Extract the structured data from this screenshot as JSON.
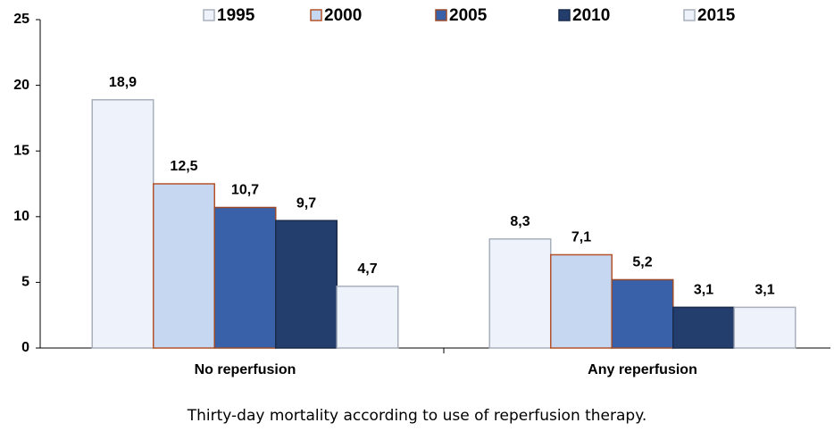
{
  "chart_data": {
    "type": "bar",
    "caption": "Thirty-day mortality according to use of reperfusion therapy.",
    "categories": [
      "No reperfusion",
      "Any reperfusion"
    ],
    "series": [
      {
        "name": "1995",
        "color": "#eef2fb",
        "edgecolor": "#a8b0bc",
        "values": [
          18.9,
          8.3
        ],
        "value_labels": [
          "18,9",
          "8,3"
        ]
      },
      {
        "name": "2000",
        "color": "#c6d7f1",
        "edgecolor": "#b4532a",
        "values": [
          12.5,
          7.1
        ],
        "value_labels": [
          "12,5",
          "7,1"
        ]
      },
      {
        "name": "2005",
        "color": "#3961a9",
        "edgecolor": "#9a4a2a",
        "values": [
          10.7,
          5.2
        ],
        "value_labels": [
          "10,7",
          "5,2"
        ]
      },
      {
        "name": "2010",
        "color": "#233d6c",
        "edgecolor": "#1a2b4c",
        "values": [
          9.7,
          3.1
        ],
        "value_labels": [
          "9,7",
          "3,1"
        ]
      },
      {
        "name": "2015",
        "color": "#eef2fb",
        "edgecolor": "#a8b0bc",
        "values": [
          4.7,
          3.1
        ],
        "value_labels": [
          "4,7",
          "3,1"
        ]
      }
    ],
    "ylim": [
      0,
      25
    ],
    "yticks": [
      0,
      5,
      10,
      15,
      20,
      25
    ],
    "grid": false,
    "legend": "top"
  }
}
